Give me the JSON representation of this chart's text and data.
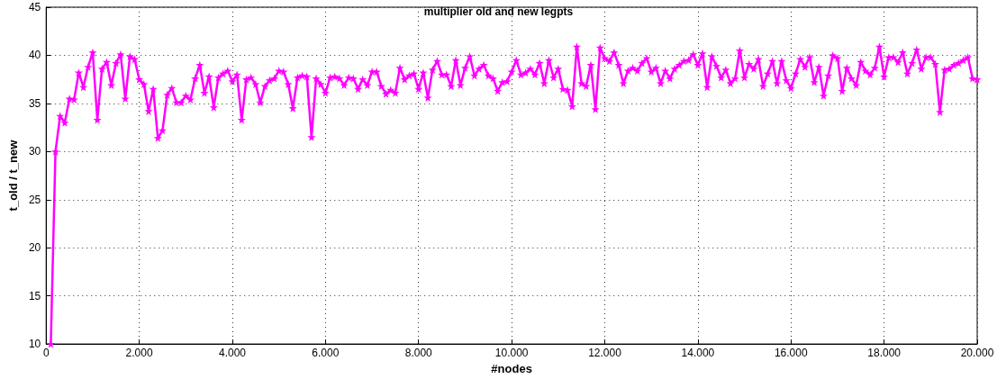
{
  "chart_data": {
    "type": "line",
    "title": "multiplier old and new legpts",
    "xlabel": "#nodes",
    "ylabel": "t_old / t_new",
    "x": [
      100,
      200,
      300,
      400,
      500,
      600,
      700,
      800,
      900,
      1000,
      1100,
      1200,
      1300,
      1400,
      1500,
      1600,
      1700,
      1800,
      1900,
      2000,
      2100,
      2200,
      2300,
      2400,
      2500,
      2600,
      2700,
      2800,
      2900,
      3000,
      3100,
      3200,
      3300,
      3400,
      3500,
      3600,
      3700,
      3800,
      3900,
      4000,
      4100,
      4200,
      4300,
      4400,
      4500,
      4600,
      4700,
      4800,
      4900,
      5000,
      5100,
      5200,
      5300,
      5400,
      5500,
      5600,
      5700,
      5800,
      5900,
      6000,
      6100,
      6200,
      6300,
      6400,
      6500,
      6600,
      6700,
      6800,
      6900,
      7000,
      7100,
      7200,
      7300,
      7400,
      7500,
      7600,
      7700,
      7800,
      7900,
      8000,
      8100,
      8200,
      8300,
      8400,
      8500,
      8600,
      8700,
      8800,
      8900,
      9000,
      9100,
      9200,
      9300,
      9400,
      9500,
      9600,
      9700,
      9800,
      9900,
      10000,
      10100,
      10200,
      10300,
      10400,
      10500,
      10600,
      10700,
      10800,
      10900,
      11000,
      11100,
      11200,
      11300,
      11400,
      11500,
      11600,
      11700,
      11800,
      11900,
      12000,
      12100,
      12200,
      12300,
      12400,
      12500,
      12600,
      12700,
      12800,
      12900,
      13000,
      13100,
      13200,
      13300,
      13400,
      13500,
      13600,
      13700,
      13800,
      13900,
      14000,
      14100,
      14200,
      14300,
      14400,
      14500,
      14600,
      14700,
      14800,
      14900,
      15000,
      15100,
      15200,
      15300,
      15400,
      15500,
      15600,
      15700,
      15800,
      15900,
      16000,
      16100,
      16200,
      16300,
      16400,
      16500,
      16600,
      16700,
      16800,
      16900,
      17000,
      17100,
      17200,
      17300,
      17400,
      17500,
      17600,
      17700,
      17800,
      17900,
      18000,
      18100,
      18200,
      18300,
      18400,
      18500,
      18600,
      18700,
      18800,
      18900,
      19000,
      19100,
      19200,
      19300,
      19400,
      19500,
      19600,
      19700,
      19800,
      19900,
      20000
    ],
    "series": [
      {
        "color": "#ff00ff",
        "values": [
          10,
          30.0,
          33.7,
          33.0,
          35.5,
          35.4,
          38.2,
          36.7,
          38.8,
          40.3,
          33.3,
          38.6,
          39.3,
          36.9,
          39.2,
          40.1,
          35.5,
          39.9,
          39.6,
          37.5,
          37.0,
          34.2,
          36.5,
          31.4,
          32.2,
          35.9,
          36.6,
          35.1,
          35.1,
          35.8,
          35.4,
          37.6,
          39.0,
          36.1,
          37.8,
          34.6,
          37.7,
          38.1,
          38.4,
          37.3,
          38.0,
          33.3,
          37.5,
          37.7,
          37.0,
          35.1,
          36.8,
          37.4,
          37.6,
          38.4,
          38.3,
          37.0,
          34.5,
          37.7,
          37.9,
          37.8,
          31.5,
          37.6,
          37.0,
          36.1,
          37.7,
          37.8,
          37.6,
          36.9,
          37.7,
          37.6,
          36.5,
          37.5,
          36.9,
          38.3,
          38.3,
          36.8,
          36.0,
          36.4,
          36.1,
          38.7,
          37.5,
          37.9,
          38.1,
          36.5,
          38.2,
          35.6,
          38.5,
          39.4,
          38.0,
          38.0,
          36.8,
          39.5,
          36.9,
          38.7,
          39.9,
          37.9,
          38.6,
          39.0,
          37.9,
          37.6,
          36.3,
          37.2,
          37.3,
          38.3,
          39.5,
          38.0,
          38.2,
          38.6,
          38.0,
          39.2,
          37.1,
          39.5,
          37.7,
          38.6,
          36.5,
          36.4,
          34.7,
          40.9,
          37.1,
          36.8,
          39.0,
          34.4,
          40.8,
          39.7,
          39.4,
          40.3,
          39.0,
          37.1,
          38.4,
          38.7,
          38.4,
          39.2,
          39.7,
          38.3,
          38.7,
          37.1,
          38.4,
          37.6,
          38.6,
          39.0,
          39.4,
          39.5,
          40.1,
          39.0,
          40.2,
          36.7,
          39.9,
          38.9,
          37.7,
          38.5,
          37.1,
          37.6,
          40.5,
          37.7,
          39.1,
          38.6,
          39.6,
          36.8,
          38.1,
          39.4,
          37.1,
          39.4,
          37.4,
          36.6,
          38.1,
          39.6,
          38.8,
          39.8,
          37.2,
          38.8,
          35.8,
          37.9,
          40.0,
          39.7,
          36.3,
          38.7,
          37.6,
          36.9,
          39.3,
          38.4,
          38.0,
          38.7,
          40.9,
          37.8,
          39.8,
          39.8,
          39.3,
          40.3,
          38.1,
          39.2,
          40.6,
          38.6,
          39.8,
          39.8,
          39.1,
          34.1,
          38.5,
          38.6,
          39.0,
          39.2,
          39.5,
          39.8,
          37.6,
          37.5
        ]
      }
    ],
    "xlim": [
      0,
      20000
    ],
    "xticks": [
      0,
      {
        "value": 2000,
        "label": "2.000"
      },
      {
        "value": 4000,
        "label": "4.000"
      },
      {
        "value": 6000,
        "label": "6.000"
      },
      {
        "value": 8000,
        "label": "8.000"
      },
      {
        "value": 10000,
        "label": "10.000"
      },
      {
        "value": 12000,
        "label": "12.000"
      },
      {
        "value": 14000,
        "label": "14.000"
      },
      {
        "value": 16000,
        "label": "16.000"
      },
      {
        "value": 18000,
        "label": "18.000"
      },
      {
        "value": 20000,
        "label": "20.000"
      }
    ],
    "ylim": [
      10,
      45
    ],
    "yticks": [
      10,
      15,
      20,
      25,
      30,
      35,
      40,
      45
    ],
    "grid": true,
    "marker": "star",
    "line_style": "solid"
  }
}
